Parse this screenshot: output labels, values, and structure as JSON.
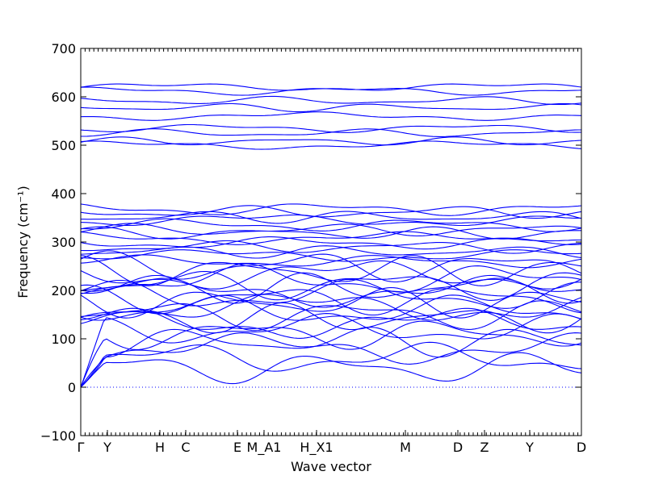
{
  "chart_data": {
    "type": "line",
    "title": "",
    "xlabel": "Wave vector",
    "ylabel": "Frequency (cm⁻¹)",
    "ylim": [
      -100,
      700
    ],
    "y_ticks": [
      -100,
      0,
      100,
      200,
      300,
      400,
      500,
      600,
      700
    ],
    "x_ticks": [
      "Γ",
      "Y",
      "H",
      "C",
      "E",
      "M_A1",
      "H_X1",
      "M",
      "D",
      "Z",
      "Y",
      "D"
    ],
    "grid": false,
    "legend": "none",
    "series_color": "#0000ff",
    "zero_line": {
      "value": 0,
      "style": "dotted"
    },
    "band_levels": [
      620,
      612,
      592,
      578,
      560,
      535,
      525,
      508,
      500,
      368,
      362,
      352,
      345,
      335,
      325,
      318,
      308,
      298,
      290,
      280,
      272,
      260,
      250,
      240,
      232,
      222,
      212,
      205,
      198,
      190,
      182,
      175,
      165,
      158,
      150,
      142,
      132,
      120,
      110,
      95,
      80,
      60,
      40
    ]
  }
}
